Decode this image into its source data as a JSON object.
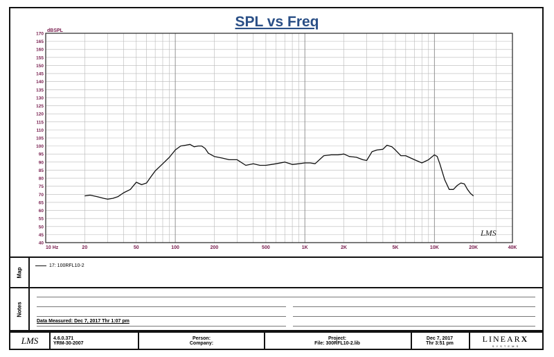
{
  "chart_data": {
    "type": "line",
    "title": "SPL vs Freq",
    "ylabel": "dBSPL",
    "xscale": "log",
    "xlim": [
      10,
      40000
    ],
    "ylim": [
      40,
      170
    ],
    "grid": true,
    "y_ticks": [
      40,
      45,
      50,
      55,
      60,
      65,
      70,
      75,
      80,
      85,
      90,
      95,
      100,
      105,
      110,
      115,
      120,
      125,
      130,
      135,
      140,
      145,
      150,
      155,
      160,
      165,
      170
    ],
    "x_tick_labels": [
      {
        "value": 10,
        "label": "10  Hz"
      },
      {
        "value": 20,
        "label": "20"
      },
      {
        "value": 50,
        "label": "50"
      },
      {
        "value": 100,
        "label": "100"
      },
      {
        "value": 200,
        "label": "200"
      },
      {
        "value": 500,
        "label": "500"
      },
      {
        "value": 1000,
        "label": "1K"
      },
      {
        "value": 2000,
        "label": "2K"
      },
      {
        "value": 5000,
        "label": "5K"
      },
      {
        "value": 10000,
        "label": "10K"
      },
      {
        "value": 20000,
        "label": "20K"
      },
      {
        "value": 40000,
        "label": "40K"
      }
    ],
    "series": [
      {
        "name": "17: 100RFL10-2",
        "color": "#111111",
        "x": [
          20,
          22,
          25,
          28,
          30,
          33,
          36,
          40,
          45,
          50,
          55,
          60,
          65,
          70,
          80,
          90,
          100,
          110,
          120,
          130,
          140,
          150,
          160,
          170,
          180,
          200,
          230,
          260,
          300,
          350,
          400,
          450,
          500,
          550,
          600,
          700,
          800,
          900,
          1000,
          1100,
          1200,
          1400,
          1600,
          1800,
          2000,
          2200,
          2500,
          2800,
          3000,
          3300,
          3600,
          4000,
          4300,
          4700,
          5000,
          5500,
          6000,
          7000,
          8000,
          9000,
          10000,
          10500,
          11000,
          12000,
          13000,
          14000,
          15000,
          16000,
          17000,
          18000,
          19000,
          20000
        ],
        "y": [
          69,
          69.5,
          68.5,
          67.5,
          67,
          67.5,
          68.5,
          71,
          73,
          77.5,
          76,
          77,
          81,
          84.5,
          89,
          93,
          97.5,
          100,
          100.5,
          101,
          99.5,
          100,
          100,
          98.5,
          95.5,
          93.5,
          92.5,
          91.5,
          91.5,
          88,
          89,
          88,
          88,
          88.5,
          89,
          90,
          88.5,
          89,
          89.5,
          89.5,
          89,
          94,
          94.5,
          94.5,
          95,
          93.5,
          93,
          91.5,
          91,
          96.5,
          97.5,
          98,
          100.5,
          99.5,
          97.5,
          94,
          94,
          91.5,
          89.5,
          91.5,
          94.5,
          93.5,
          89,
          79,
          73,
          73,
          75.5,
          77,
          76.5,
          73,
          70.5,
          69
        ]
      }
    ]
  },
  "legend": {
    "side_label": "Map",
    "entry": "17: 100RFL10-2"
  },
  "notes": {
    "side_label": "Notes",
    "date_measured": "Data Measured: Dec  7, 2017   Thr   1:07 pm"
  },
  "watermark": "LMS",
  "footer": {
    "logo": "LMS",
    "version": "4.6.0.371",
    "date_code": "YRM-30-2007",
    "person_label": "Person:",
    "company_label": "Company:",
    "project_label": "Project:",
    "file_label": "File: 300RFL10-2.lib",
    "date": "Dec  7, 2017",
    "time": "Thr   3:51 pm",
    "brand": "LINEAR",
    "brand_mark": "X",
    "brand_sub": "S Y S T E M S"
  }
}
